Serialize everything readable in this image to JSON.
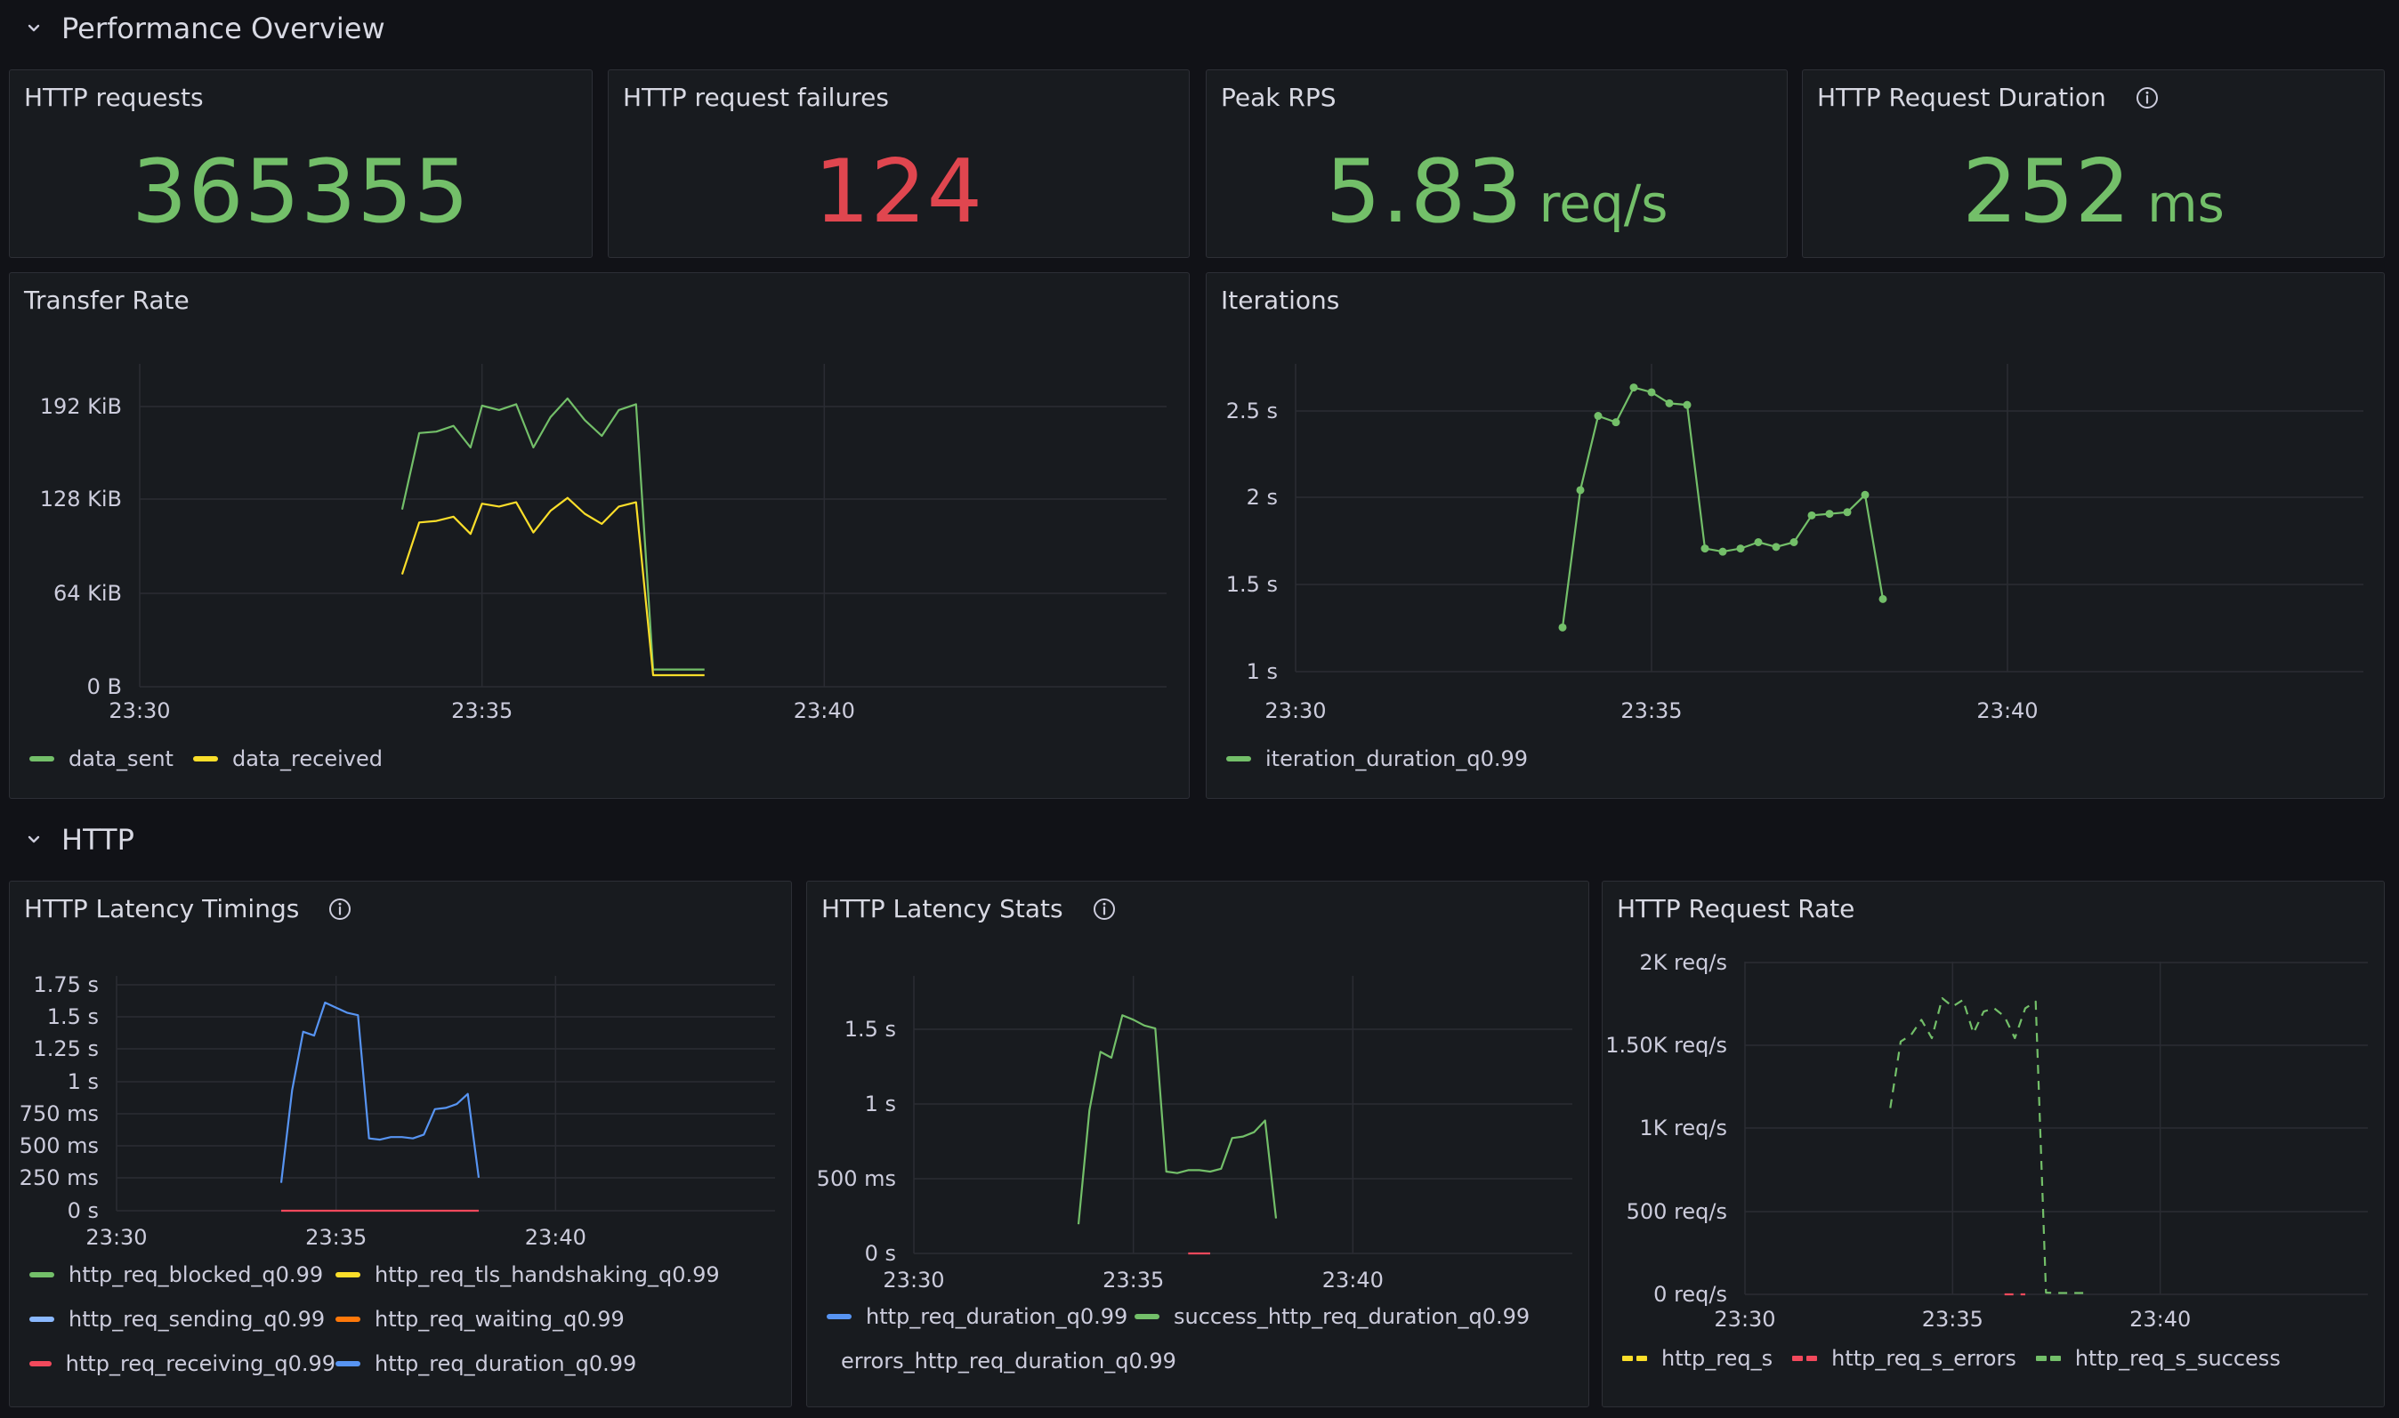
{
  "rows": {
    "performance": {
      "title": "Performance Overview"
    },
    "http": {
      "title": "HTTP"
    }
  },
  "stats": {
    "requests": {
      "title": "HTTP requests",
      "value": "365355",
      "color": "#73bf69"
    },
    "failures": {
      "title": "HTTP request failures",
      "value": "124",
      "color": "#e0464f"
    },
    "peak_rps": {
      "title": "Peak RPS",
      "value": "5.83",
      "unit": "req/s",
      "color": "#73bf69"
    },
    "duration": {
      "title": "HTTP Request Duration",
      "value": "252",
      "unit": "ms",
      "color": "#73bf69"
    }
  },
  "panels": {
    "transfer_rate": {
      "title": "Transfer Rate"
    },
    "iterations": {
      "title": "Iterations"
    },
    "latency_timings": {
      "title": "HTTP Latency Timings"
    },
    "latency_stats": {
      "title": "HTTP Latency Stats"
    },
    "request_rate": {
      "title": "HTTP Request Rate"
    }
  },
  "chart_data": [
    {
      "id": "transfer_rate",
      "type": "line",
      "title": "Transfer Rate",
      "x_ticks": [
        "23:30",
        "23:35",
        "23:40"
      ],
      "xlim": [
        "23:30",
        "23:45"
      ],
      "y_ticks": [
        "0 B",
        "64 KiB",
        "128 KiB",
        "192 KiB"
      ],
      "ylim": [
        0,
        224
      ],
      "y_unit": "KiB",
      "legend_position": "bottom-left",
      "series": [
        {
          "name": "data_sent",
          "color": "#73bf69",
          "x": [
            "23:33:50",
            "23:34:05",
            "23:34:20",
            "23:34:35",
            "23:34:50",
            "23:35:00",
            "23:35:15",
            "23:35:30",
            "23:35:45",
            "23:36:00",
            "23:36:15",
            "23:36:30",
            "23:36:45",
            "23:37:00",
            "23:37:15",
            "23:37:30",
            "23:37:45",
            "23:38:00",
            "23:38:15"
          ],
          "values": [
            123,
            176,
            177,
            181,
            166,
            195,
            192,
            196,
            166,
            187,
            200,
            185,
            174,
            192,
            196,
            12,
            12,
            12,
            12
          ]
        },
        {
          "name": "data_received",
          "color": "#fade2a",
          "x": [
            "23:33:50",
            "23:34:05",
            "23:34:20",
            "23:34:35",
            "23:34:50",
            "23:35:00",
            "23:35:15",
            "23:35:30",
            "23:35:45",
            "23:36:00",
            "23:36:15",
            "23:36:30",
            "23:36:45",
            "23:37:00",
            "23:37:15",
            "23:37:30",
            "23:37:45",
            "23:38:00",
            "23:38:15"
          ],
          "values": [
            78,
            114,
            115,
            118,
            106,
            127,
            125,
            128,
            107,
            122,
            131,
            120,
            113,
            125,
            128,
            8,
            8,
            8,
            8
          ]
        }
      ]
    },
    {
      "id": "iterations",
      "type": "line",
      "title": "Iterations",
      "x_ticks": [
        "23:30",
        "23:35",
        "23:40"
      ],
      "xlim": [
        "23:30",
        "23:45"
      ],
      "y_ticks": [
        "1 s",
        "1.5 s",
        "2 s",
        "2.5 s"
      ],
      "ylim": [
        0.8,
        2.75
      ],
      "y_unit": "s",
      "legend_position": "bottom-left",
      "series": [
        {
          "name": "iteration_duration_q0.99",
          "color": "#73bf69",
          "x": [
            "23:33:45",
            "23:34:00",
            "23:34:15",
            "23:34:30",
            "23:34:45",
            "23:35:00",
            "23:35:15",
            "23:35:30",
            "23:35:45",
            "23:36:00",
            "23:36:15",
            "23:36:30",
            "23:36:45",
            "23:37:00",
            "23:37:15",
            "23:37:30",
            "23:37:45",
            "23:38:00",
            "23:38:15"
          ],
          "values": [
            1.08,
            1.95,
            2.42,
            2.38,
            2.6,
            2.57,
            2.5,
            2.49,
            1.58,
            1.56,
            1.58,
            1.62,
            1.59,
            1.62,
            1.79,
            1.8,
            1.81,
            1.92,
            1.26
          ]
        }
      ]
    },
    {
      "id": "latency_timings",
      "type": "line",
      "title": "HTTP Latency Timings",
      "x_ticks": [
        "23:30",
        "23:35",
        "23:40"
      ],
      "xlim": [
        "23:30",
        "23:45"
      ],
      "y_ticks": [
        "0 s",
        "250 ms",
        "500 ms",
        "750 ms",
        "1 s",
        "1.25 s",
        "1.5 s",
        "1.75 s"
      ],
      "ylim": [
        0,
        1.85
      ],
      "y_unit": "s",
      "legend_position": "bottom-left",
      "series": [
        {
          "name": "http_req_blocked_q0.99",
          "color": "#73bf69",
          "x": [],
          "values": []
        },
        {
          "name": "http_req_tls_handshaking_q0.99",
          "color": "#fade2a",
          "x": [],
          "values": []
        },
        {
          "name": "http_req_sending_q0.99",
          "color": "#8ab8ff",
          "x": [],
          "values": []
        },
        {
          "name": "http_req_waiting_q0.99",
          "color": "#ff780a",
          "x": [],
          "values": []
        },
        {
          "name": "http_req_receiving_q0.99",
          "color": "#f2495c",
          "x": [
            "23:33:45",
            "23:38:15"
          ],
          "values": [
            0,
            0
          ]
        },
        {
          "name": "http_req_duration_q0.99",
          "color": "#5794f2",
          "x": [
            "23:33:45",
            "23:34:00",
            "23:34:15",
            "23:34:30",
            "23:34:45",
            "23:35:00",
            "23:35:15",
            "23:35:30",
            "23:35:45",
            "23:36:00",
            "23:36:15",
            "23:36:30",
            "23:36:45",
            "23:37:00",
            "23:37:15",
            "23:37:30",
            "23:37:45",
            "23:38:00",
            "23:38:15"
          ],
          "values": [
            0.22,
            0.95,
            1.41,
            1.38,
            1.64,
            1.6,
            1.56,
            1.54,
            0.57,
            0.56,
            0.58,
            0.58,
            0.57,
            0.6,
            0.8,
            0.81,
            0.84,
            0.92,
            0.26
          ]
        }
      ]
    },
    {
      "id": "latency_stats",
      "type": "line",
      "title": "HTTP Latency Stats",
      "x_ticks": [
        "23:30",
        "23:35",
        "23:40"
      ],
      "xlim": [
        "23:30",
        "23:45"
      ],
      "y_ticks": [
        "0 s",
        "500 ms",
        "1 s",
        "1.5 s"
      ],
      "ylim": [
        0,
        1.9
      ],
      "y_unit": "s",
      "legend_position": "bottom-left",
      "series": [
        {
          "name": "http_req_duration_q0.99",
          "color": "#5794f2",
          "x": [],
          "values": []
        },
        {
          "name": "success_http_req_duration_q0.99",
          "color": "#73bf69",
          "x": [
            "23:33:45",
            "23:34:00",
            "23:34:15",
            "23:34:30",
            "23:34:45",
            "23:35:00",
            "23:35:15",
            "23:35:30",
            "23:35:45",
            "23:36:00",
            "23:36:15",
            "23:36:30",
            "23:36:45",
            "23:37:00",
            "23:37:15",
            "23:37:30",
            "23:37:45",
            "23:38:00",
            "23:38:15"
          ],
          "values": [
            0.2,
            0.98,
            1.38,
            1.34,
            1.63,
            1.6,
            1.56,
            1.54,
            0.56,
            0.55,
            0.57,
            0.57,
            0.56,
            0.58,
            0.79,
            0.8,
            0.83,
            0.91,
            0.24
          ]
        },
        {
          "name": "errors_http_req_duration_q0.99",
          "color": "#f2495c",
          "x": [
            "23:36:15",
            "23:36:45"
          ],
          "values": [
            0,
            0
          ]
        }
      ]
    },
    {
      "id": "request_rate",
      "type": "line",
      "title": "HTTP Request Rate",
      "x_ticks": [
        "23:30",
        "23:35",
        "23:40"
      ],
      "xlim": [
        "23:30",
        "23:45"
      ],
      "y_ticks": [
        "0 req/s",
        "500 req/s",
        "1K req/s",
        "1.50K req/s",
        "2K req/s"
      ],
      "ylim": [
        0,
        2000
      ],
      "y_unit": "req/s",
      "line_style": "dashed",
      "legend_position": "bottom-left",
      "series": [
        {
          "name": "http_req_s",
          "color": "#fade2a",
          "x": [],
          "values": []
        },
        {
          "name": "http_req_s_errors",
          "color": "#f2495c",
          "x": [
            "23:36:15",
            "23:36:45"
          ],
          "values": [
            0,
            0
          ]
        },
        {
          "name": "http_req_s_success",
          "color": "#73bf69",
          "x": [
            "23:33:30",
            "23:33:45",
            "23:34:00",
            "23:34:15",
            "23:34:30",
            "23:34:45",
            "23:35:00",
            "23:35:15",
            "23:35:30",
            "23:35:45",
            "23:36:00",
            "23:36:15",
            "23:36:30",
            "23:36:45",
            "23:37:00",
            "23:37:15",
            "23:37:30",
            "23:37:45",
            "23:38:00",
            "23:38:15"
          ],
          "values": [
            1120,
            1520,
            1560,
            1650,
            1540,
            1780,
            1730,
            1770,
            1570,
            1700,
            1720,
            1670,
            1540,
            1720,
            1760,
            10,
            8,
            8,
            8,
            8
          ]
        }
      ]
    }
  ]
}
